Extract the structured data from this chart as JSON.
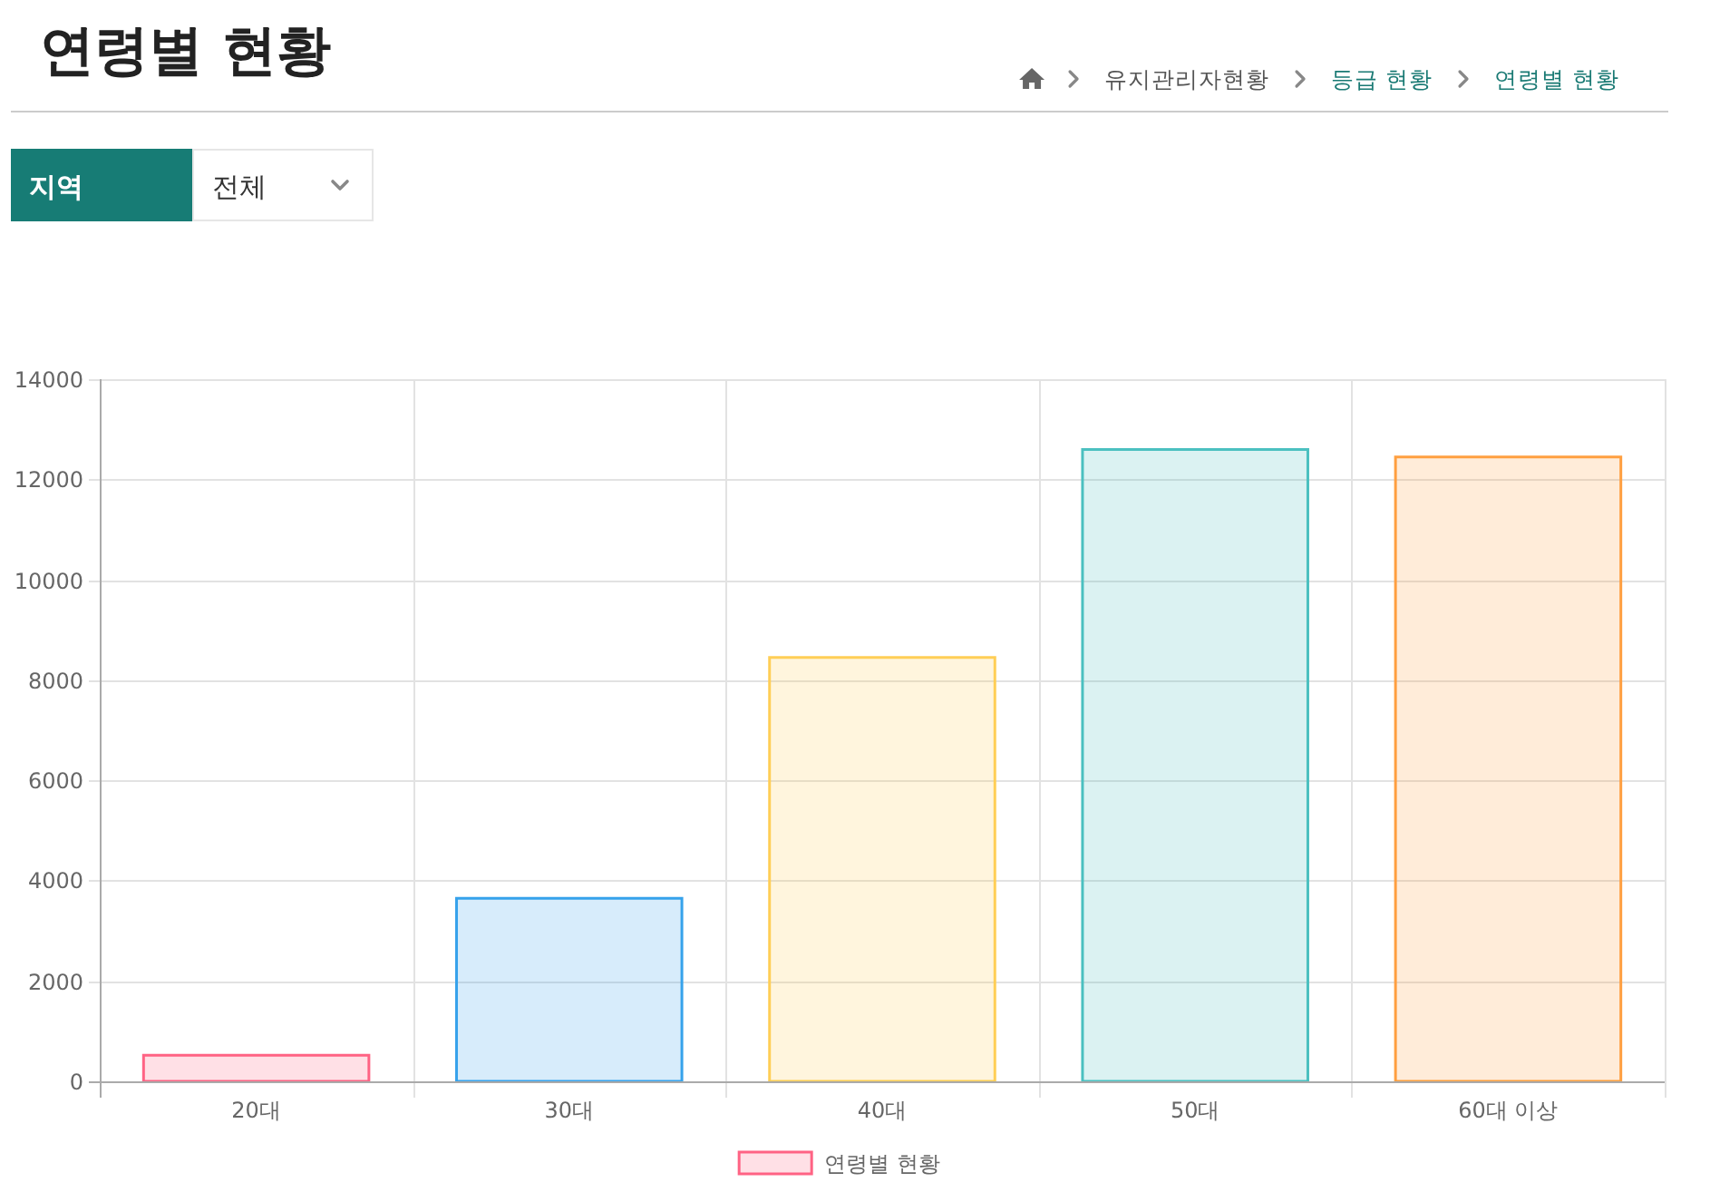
{
  "chart_data": {
    "type": "bar",
    "title": "연령별 현황",
    "annotations": [
      "유지관리자현황",
      "등급 현황",
      "연령별 현황",
      "지역",
      "전체"
    ],
    "categories": [
      "20대",
      "30대",
      "40대",
      "50대",
      "60대 이상"
    ],
    "series": [
      {
        "name": "연령별 현황",
        "color": "#ff6384",
        "colors": [
          "#ff6384",
          "#36a2eb",
          "#ffce56",
          "#4bc0c0",
          "#ff9f40"
        ],
        "values": [
          520,
          3650,
          8450,
          12600,
          12450
        ]
      }
    ],
    "ylim": [
      0,
      14000
    ],
    "yticks": [
      0,
      2000,
      4000,
      6000,
      8000,
      10000,
      12000,
      14000
    ],
    "grid": true,
    "legend": "bottom"
  }
}
